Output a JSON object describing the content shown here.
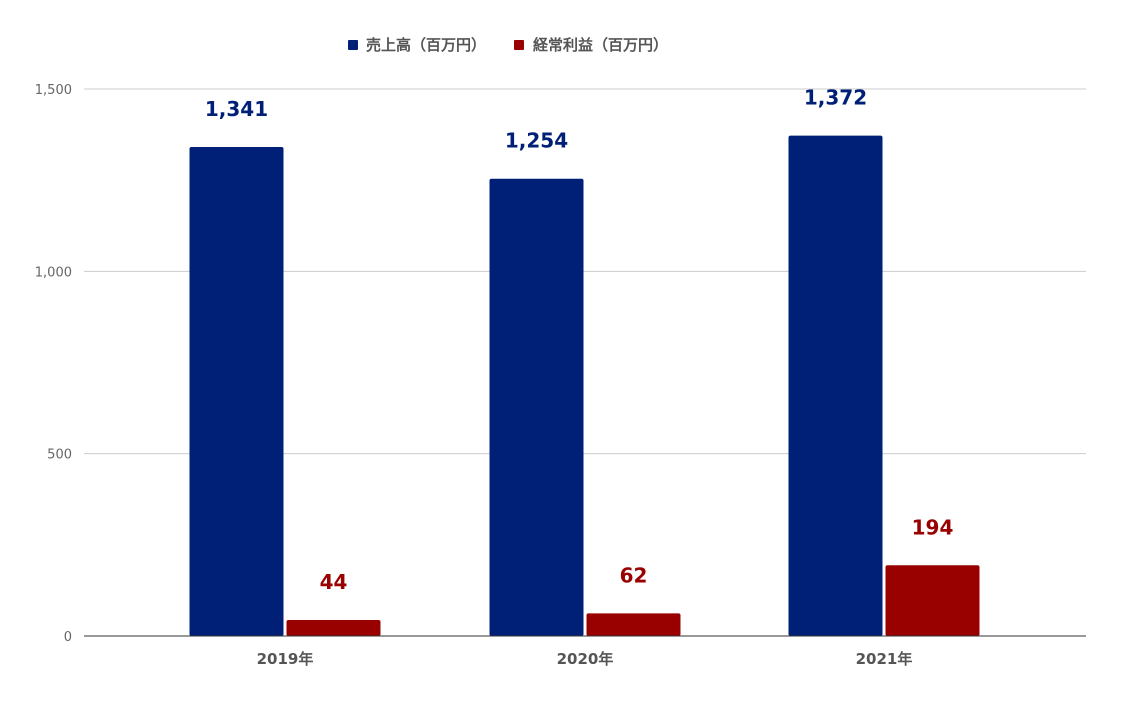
{
  "chart_data": {
    "type": "bar",
    "categories": [
      "2019年",
      "2020年",
      "2021年"
    ],
    "series": [
      {
        "name": "売上高（百万円）",
        "values": [
          1341,
          1254,
          1372
        ],
        "color": "#002078",
        "labels": [
          "1,341",
          "1,254",
          "1,372"
        ]
      },
      {
        "name": "経常利益（百万円）",
        "values": [
          44,
          62,
          194
        ],
        "color": "#990000",
        "labels": [
          "44",
          "62",
          "194"
        ]
      }
    ],
    "ylim": [
      0,
      1500
    ],
    "yticks": [
      0,
      500,
      1000,
      1500
    ],
    "ytick_labels": [
      "0",
      "500",
      "1,000",
      "1,500"
    ],
    "legend_position": "top-center",
    "grid": true,
    "grid_color": "#cccccc",
    "axis_color": "#333333"
  }
}
